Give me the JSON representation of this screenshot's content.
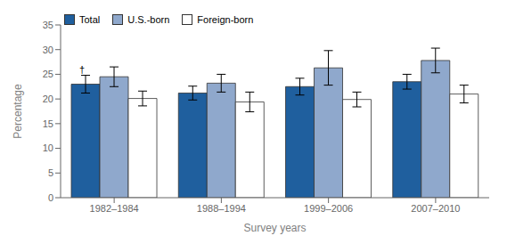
{
  "chart_data": {
    "type": "bar",
    "xlabel": "Survey years",
    "ylabel": "Percentage",
    "categories": [
      "1982–1984",
      "1988–1994",
      "1999–2006",
      "2007–2010"
    ],
    "series": [
      {
        "name": "Total",
        "color": "#1f5f9e",
        "values": [
          23.0,
          21.2,
          22.5,
          23.5
        ],
        "error_lo": [
          1.8,
          1.4,
          1.7,
          1.5
        ],
        "error_hi": [
          1.8,
          1.4,
          1.7,
          1.5
        ]
      },
      {
        "name": "U.S.-born",
        "color": "#8fa8cc",
        "values": [
          24.5,
          23.2,
          26.3,
          27.8
        ],
        "error_lo": [
          2.0,
          1.8,
          3.5,
          2.5
        ],
        "error_hi": [
          2.0,
          1.8,
          3.5,
          2.5
        ]
      },
      {
        "name": "Foreign-born",
        "color": "#ffffff",
        "values": [
          20.1,
          19.4,
          19.9,
          21.0
        ],
        "error_lo": [
          1.5,
          2.0,
          1.5,
          1.8
        ],
        "error_hi": [
          1.5,
          2.0,
          1.5,
          1.8
        ]
      }
    ],
    "ylim": [
      0,
      35
    ],
    "yticks": [
      0,
      5,
      10,
      15,
      20,
      25,
      30,
      35
    ],
    "grid": false,
    "legend": "upper left",
    "annotations": [
      {
        "text": "†",
        "category": "1982–1984",
        "series": "Total"
      }
    ]
  }
}
